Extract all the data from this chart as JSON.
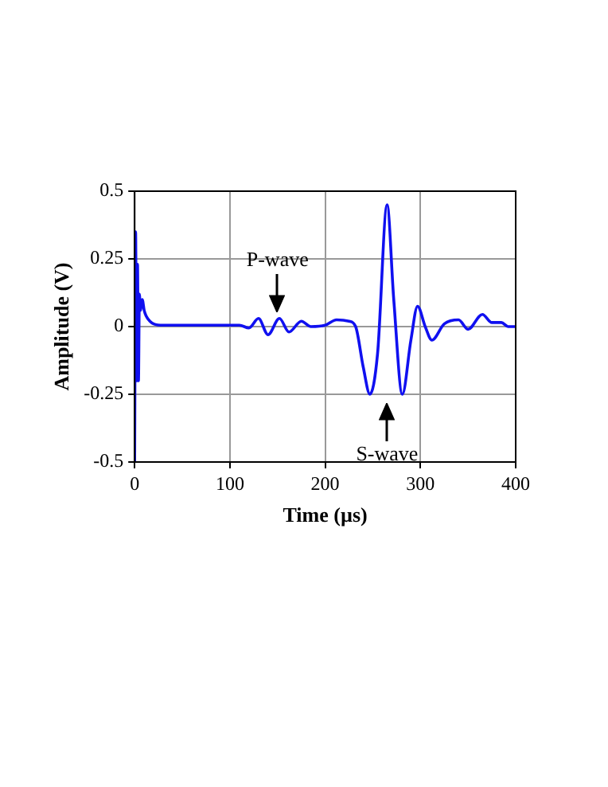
{
  "chart_data": {
    "type": "line",
    "xlabel": "Time (µs)",
    "ylabel": "Amplitude (V)",
    "xlim": [
      0,
      400
    ],
    "xticks": [
      0,
      100,
      200,
      300,
      400
    ],
    "ylim": [
      -0.5,
      0.5
    ],
    "yticks": [
      -0.5,
      -0.25,
      0,
      0.25,
      0.5
    ],
    "grid": true,
    "legend": false,
    "marker": "none",
    "line_style": "solid",
    "annotations": [
      "P-wave",
      "S-wave"
    ],
    "series": [
      {
        "color": "#1010f0",
        "x": [
          0,
          1,
          2,
          3,
          4,
          5,
          6,
          8,
          10,
          12,
          16,
          20,
          30,
          50,
          80,
          110,
          120,
          130,
          140,
          152,
          162,
          175,
          185,
          200,
          212,
          225,
          232,
          240,
          247,
          255,
          265,
          272,
          281,
          290,
          297,
          305,
          312,
          325,
          340,
          350,
          365,
          375,
          385,
          392,
          400
        ],
        "values": [
          -0.5,
          0.35,
          -0.2,
          0.23,
          -0.2,
          0.12,
          0.06,
          0.1,
          0.06,
          0.04,
          0.02,
          0.01,
          0.005,
          0.005,
          0.005,
          0.005,
          -0.005,
          0.03,
          -0.03,
          0.03,
          -0.02,
          0.02,
          0,
          0.005,
          0.025,
          0.02,
          0,
          -0.15,
          -0.25,
          -0.1,
          0.45,
          0.1,
          -0.25,
          -0.05,
          0.075,
          0,
          -0.05,
          0.01,
          0.025,
          -0.01,
          0.045,
          0.015,
          0.015,
          0,
          0
        ]
      }
    ]
  }
}
